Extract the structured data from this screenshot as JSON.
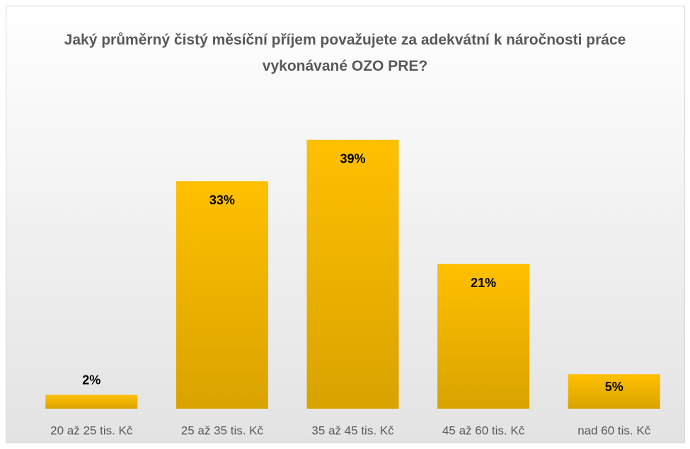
{
  "chart_data": {
    "type": "bar",
    "title": "Jaký průměrný čistý měsíční příjem považujete za adekvátní k náročnosti práce vykonávané OZO PRE?",
    "categories": [
      "20 až 25 tis. Kč",
      "25 až 35 tis. Kč",
      "35 až 45 tis. Kč",
      "45 až 60 tis. Kč",
      "nad 60 tis. Kč"
    ],
    "values": [
      2,
      33,
      39,
      21,
      5
    ],
    "value_labels": [
      "2%",
      "33%",
      "39%",
      "21%",
      "5%"
    ],
    "color": "#ffc000"
  }
}
